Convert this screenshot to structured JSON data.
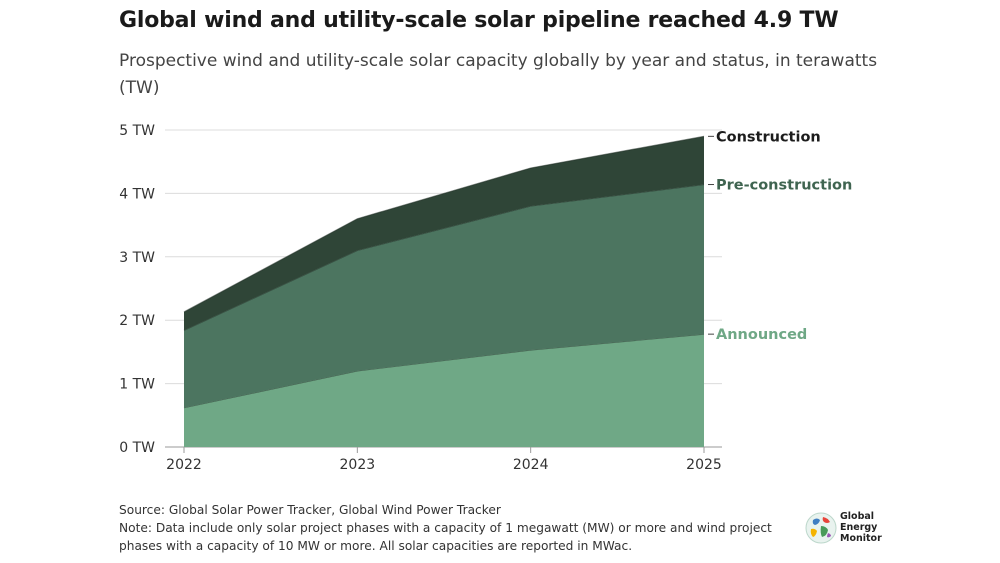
{
  "chart_data": {
    "type": "area",
    "stacked": true,
    "title": "Global wind and utility-scale solar pipeline reached 4.9 TW",
    "subtitle": "Prospective wind and utility-scale solar capacity globally by year and status, in terawatts (TW)",
    "x": [
      "2022",
      "2023",
      "2024",
      "2025"
    ],
    "y_ticks": [
      "0 TW",
      "1 TW",
      "2 TW",
      "3 TW",
      "4 TW",
      "5 TW"
    ],
    "ylim": [
      0,
      5
    ],
    "grid": true,
    "legend": "direct labels at right end of series",
    "series": [
      {
        "name": "Announced",
        "values": [
          0.62,
          1.2,
          1.53,
          1.78
        ],
        "color": "#6fa886"
      },
      {
        "name": "Pre-construction",
        "values": [
          1.22,
          1.9,
          2.27,
          2.36
        ],
        "color": "#4c7560",
        "label_color": "#3f6450"
      },
      {
        "name": "Construction",
        "values": [
          0.29,
          0.5,
          0.6,
          0.76
        ],
        "color": "#2f4537",
        "label_color": "#1c1c1c"
      }
    ]
  },
  "footer": {
    "source": "Source: Global Solar Power Tracker, Global Wind Power Tracker",
    "note_line1": "Note: Data include only solar project phases with a capacity of 1 megawatt (MW) or more and wind project",
    "note_line2": "phases with a capacity of 10 MW or more. All solar capacities are reported in MWac."
  },
  "logo": {
    "line1": "Global",
    "line2": "Energy",
    "line3": "Monitor",
    "icon": "globe-icon"
  }
}
